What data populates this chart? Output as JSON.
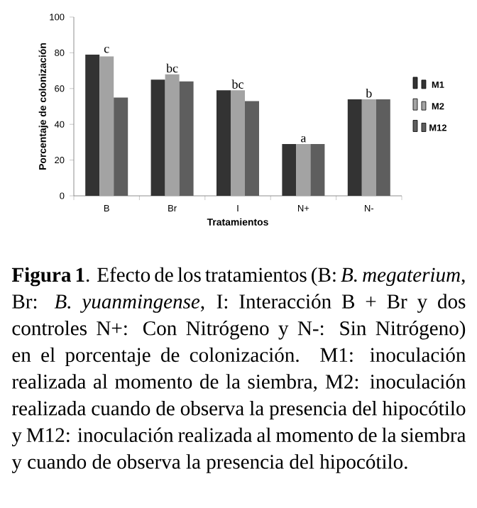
{
  "chart_data": {
    "type": "bar",
    "categories": [
      "B",
      "Br",
      "I",
      "N+",
      "N-"
    ],
    "series": [
      {
        "name": "M1",
        "color": "#333333",
        "values": [
          79,
          65,
          59,
          29,
          54
        ]
      },
      {
        "name": "M2",
        "color": "#a3a3a3",
        "values": [
          78,
          68,
          59,
          29,
          54
        ]
      },
      {
        "name": "M12",
        "color": "#5e5e5e",
        "values": [
          55,
          64,
          53,
          29,
          54
        ]
      }
    ],
    "xlabel": "Tratamientos",
    "ylabel": "Porcentaje de colonización",
    "ylim": [
      0,
      100
    ],
    "yticks": [
      0,
      20,
      40,
      60,
      80,
      100
    ],
    "grid": false,
    "legend": "right",
    "annotations": [
      {
        "text": "c",
        "x": "B",
        "y": 79
      },
      {
        "text": "bc",
        "x": "Br",
        "y": 68
      },
      {
        "text": "bc",
        "x": "I",
        "y": 59
      },
      {
        "text": "a",
        "x": "N+",
        "y": 29
      },
      {
        "text": "b",
        "x": "N-",
        "y": 54
      },
      "**Figura 1**. Efecto de los tratamientos (B: *B. megaterium*, Br: *B. yuanmingense*, I: Interacción B + Br y dos controles N+: Con Nitrógeno y N-: Sin Nitrógeno) en el porcentaje de colonización. M1: inoculación realizada al momento de la siembra, M2: inoculación realizada cuando de observa la presencia del hipocótilo y M12: inoculación realizada al momento de la siembra y cuando de observa la presencia del hipocótilo."
    ]
  }
}
